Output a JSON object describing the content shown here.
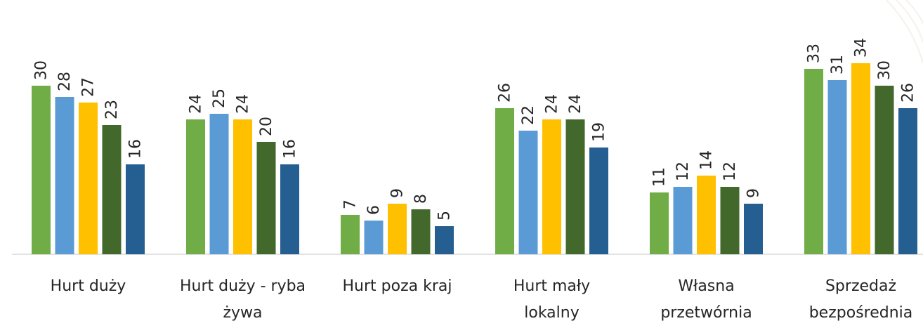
{
  "chart_data": {
    "type": "bar",
    "categories": [
      [
        "Hurt duży"
      ],
      [
        "Hurt duży - ryba",
        "żywa"
      ],
      [
        "Hurt poza kraj"
      ],
      [
        "Hurt mały",
        "lokalny"
      ],
      [
        "Własna",
        "przetwórnia"
      ],
      [
        "Sprzedaż",
        "bezpośrednia"
      ]
    ],
    "series": [
      {
        "color": "#70ad47",
        "values": [
          30,
          24,
          7,
          26,
          11,
          33
        ]
      },
      {
        "color": "#5b9bd5",
        "values": [
          28,
          25,
          6,
          22,
          12,
          31
        ]
      },
      {
        "color": "#ffc000",
        "values": [
          27,
          24,
          9,
          24,
          14,
          34
        ]
      },
      {
        "color": "#43682b",
        "values": [
          23,
          20,
          8,
          24,
          12,
          30
        ]
      },
      {
        "color": "#255e91",
        "values": [
          16,
          16,
          5,
          19,
          9,
          26
        ]
      }
    ],
    "ylim": [
      0,
      34
    ],
    "grid": false,
    "legend": "none",
    "title": "",
    "xlabel": "",
    "ylabel": ""
  }
}
